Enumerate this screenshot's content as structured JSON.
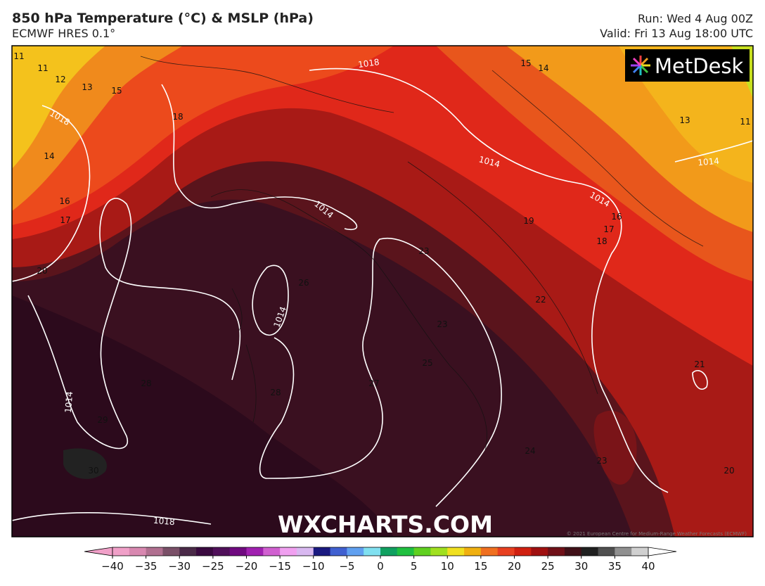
{
  "header": {
    "title": "850 hPa Temperature (°C) & MSLP (hPa)",
    "subtitle": "ECMWF HRES 0.1°",
    "run": "Run: Wed 4 Aug 00Z",
    "valid": "Valid: Fri 13 Aug 18:00 UTC"
  },
  "map": {
    "logo": "MetDesk",
    "watermark": "WXCHARTS.COM",
    "copyright": "© 2021 European Centre for Medium-Range Weather Forecasts (ECMWF)",
    "temperature_labels": [
      11,
      11,
      12,
      13,
      15,
      18,
      14,
      16,
      17,
      20,
      15,
      14,
      13,
      11,
      16,
      17,
      18,
      19,
      23,
      26,
      23,
      22,
      25,
      27,
      28,
      28,
      29,
      30,
      24,
      23,
      21,
      20
    ],
    "isobar_labels": [
      1018,
      1018,
      1014,
      1014,
      1014,
      1014,
      1014,
      1014,
      1018
    ]
  },
  "colorbar": {
    "range": [
      -40,
      40
    ],
    "ticks": [
      {
        "value": -40,
        "label": "−40"
      },
      {
        "value": -35,
        "label": "−35"
      },
      {
        "value": -30,
        "label": "−30"
      },
      {
        "value": -25,
        "label": "−25"
      },
      {
        "value": -20,
        "label": "−20"
      },
      {
        "value": -15,
        "label": "−15"
      },
      {
        "value": -10,
        "label": "−10"
      },
      {
        "value": -5,
        "label": "−5"
      },
      0,
      5,
      10,
      15,
      20,
      25,
      30,
      35,
      40
    ],
    "colors": [
      "#f0a0c8",
      "#d888b0",
      "#b07090",
      "#7a5068",
      "#4a2a48",
      "#3a0a40",
      "#50105a",
      "#700a80",
      "#a020b0",
      "#d060d0",
      "#f0a0f0",
      "#d8b8f0",
      "#1a1a80",
      "#4060d0",
      "#60a0f0",
      "#80e0f0",
      "#10a060",
      "#20c040",
      "#60d020",
      "#a0e020",
      "#f0e020",
      "#f0b010",
      "#f07020",
      "#e84020",
      "#d02010",
      "#a01010",
      "#701018",
      "#401018",
      "#202020",
      "#505050",
      "#909090",
      "#d0d0d0"
    ]
  }
}
